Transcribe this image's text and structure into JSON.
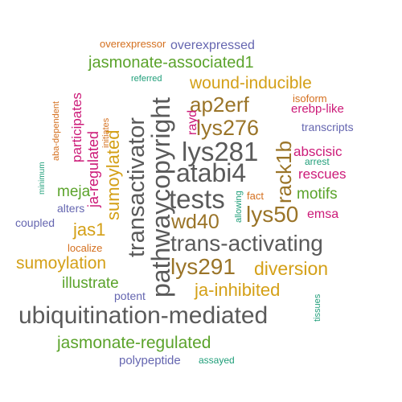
{
  "palette": {
    "gray": "#5a5a5a",
    "orange": "#d46f1e",
    "green": "#5ba32b",
    "gold": "#d4a017",
    "magenta": "#cc1a78",
    "brown": "#9a7428",
    "purple": "#6566b0",
    "teal": "#1f9e79"
  },
  "words": [
    {
      "text": "ubiquitination-mediated",
      "color": "gray"
    },
    {
      "text": "pathwaycopyright",
      "color": "gray"
    },
    {
      "text": "trans-activating",
      "color": "gray"
    },
    {
      "text": "transactivator",
      "color": "gray"
    },
    {
      "text": "tests",
      "color": "gray"
    },
    {
      "text": "atabi4",
      "color": "gray"
    },
    {
      "text": "lys281",
      "color": "gray"
    },
    {
      "text": "lys291",
      "color": "brown"
    },
    {
      "text": "lys276",
      "color": "brown"
    },
    {
      "text": "ap2erf",
      "color": "brown"
    },
    {
      "text": "lys50",
      "color": "brown"
    },
    {
      "text": "rack1b",
      "color": "brown"
    },
    {
      "text": "wd40",
      "color": "brown"
    },
    {
      "text": "sumoylated",
      "color": "gold"
    },
    {
      "text": "sumoylation",
      "color": "gold"
    },
    {
      "text": "wound-inducible",
      "color": "gold"
    },
    {
      "text": "diversion",
      "color": "gold"
    },
    {
      "text": "ja-inhibited",
      "color": "gold"
    },
    {
      "text": "jas1",
      "color": "gold"
    },
    {
      "text": "jasmonate-associated1",
      "color": "green"
    },
    {
      "text": "jasmonate-regulated",
      "color": "green"
    },
    {
      "text": "illustrate",
      "color": "green"
    },
    {
      "text": "meja",
      "color": "green"
    },
    {
      "text": "motifs",
      "color": "green"
    },
    {
      "text": "ja-regulated",
      "color": "magenta"
    },
    {
      "text": "participates",
      "color": "magenta"
    },
    {
      "text": "abscisic",
      "color": "magenta"
    },
    {
      "text": "erebp-like",
      "color": "magenta"
    },
    {
      "text": "rescues",
      "color": "magenta"
    },
    {
      "text": "emsa",
      "color": "magenta"
    },
    {
      "text": "rayd",
      "color": "magenta"
    },
    {
      "text": "overexpressed",
      "color": "purple"
    },
    {
      "text": "transcripts",
      "color": "purple"
    },
    {
      "text": "polypeptide",
      "color": "purple"
    },
    {
      "text": "alters",
      "color": "purple"
    },
    {
      "text": "coupled",
      "color": "purple"
    },
    {
      "text": "potent",
      "color": "purple"
    },
    {
      "text": "overexpressor",
      "color": "orange"
    },
    {
      "text": "localize",
      "color": "orange"
    },
    {
      "text": "isoform",
      "color": "orange"
    },
    {
      "text": "aba-dependent",
      "color": "orange"
    },
    {
      "text": "initiates",
      "color": "orange"
    },
    {
      "text": "fact",
      "color": "orange"
    },
    {
      "text": "referred",
      "color": "teal"
    },
    {
      "text": "minimum",
      "color": "teal"
    },
    {
      "text": "arrest",
      "color": "teal"
    },
    {
      "text": "allowing",
      "color": "teal"
    },
    {
      "text": "tissues",
      "color": "teal"
    },
    {
      "text": "assayed",
      "color": "teal"
    }
  ]
}
